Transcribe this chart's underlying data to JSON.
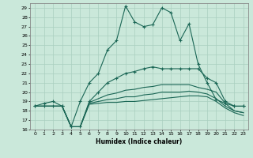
{
  "xlabel": "Humidex (Indice chaleur)",
  "xlim": [
    -0.5,
    23.5
  ],
  "ylim": [
    16,
    29.5
  ],
  "yticks": [
    16,
    17,
    18,
    19,
    20,
    21,
    22,
    23,
    24,
    25,
    26,
    27,
    28,
    29
  ],
  "xticks": [
    0,
    1,
    2,
    3,
    4,
    5,
    6,
    7,
    8,
    9,
    10,
    11,
    12,
    13,
    14,
    15,
    16,
    17,
    18,
    19,
    20,
    21,
    22,
    23
  ],
  "bg_color": "#cae8da",
  "grid_color": "#aacfbf",
  "line_color": "#1a6655",
  "line1": [
    18.5,
    18.8,
    19.0,
    18.5,
    16.3,
    19.0,
    21.0,
    22.0,
    24.5,
    25.5,
    29.2,
    27.5,
    27.0,
    27.2,
    29.0,
    28.5,
    25.5,
    27.3,
    23.0,
    21.0,
    19.2,
    18.8,
    18.5,
    18.5
  ],
  "line2": [
    18.5,
    18.5,
    18.5,
    18.5,
    16.3,
    16.3,
    19.0,
    20.0,
    21.0,
    21.5,
    22.0,
    22.2,
    22.5,
    22.7,
    22.5,
    22.5,
    22.5,
    22.5,
    22.5,
    21.5,
    21.0,
    19.0,
    18.5,
    18.5
  ],
  "line3": [
    18.5,
    18.5,
    18.5,
    18.5,
    16.3,
    16.3,
    18.9,
    19.3,
    19.7,
    19.9,
    20.2,
    20.3,
    20.5,
    20.6,
    20.8,
    20.8,
    20.8,
    20.8,
    20.5,
    20.3,
    20.0,
    18.8,
    18.0,
    17.8
  ],
  "line4": [
    18.5,
    18.5,
    18.5,
    18.5,
    16.3,
    16.3,
    18.8,
    19.0,
    19.2,
    19.3,
    19.5,
    19.5,
    19.7,
    19.8,
    20.0,
    20.0,
    20.0,
    20.1,
    20.0,
    19.8,
    19.3,
    18.5,
    18.0,
    17.8
  ],
  "line5": [
    18.5,
    18.5,
    18.5,
    18.5,
    16.3,
    16.3,
    18.7,
    18.8,
    18.9,
    18.9,
    19.0,
    19.0,
    19.1,
    19.2,
    19.3,
    19.4,
    19.5,
    19.6,
    19.6,
    19.5,
    19.0,
    18.3,
    17.8,
    17.5
  ],
  "line1_markers": [
    0,
    1,
    2,
    3,
    4,
    5,
    6,
    7,
    8,
    9,
    10,
    11,
    12,
    13,
    14,
    15,
    16,
    17,
    18,
    19,
    20,
    21,
    22,
    23
  ],
  "line2_markers": [
    0,
    1,
    2,
    3,
    4,
    5,
    6,
    7,
    8,
    9,
    10,
    11,
    12,
    13,
    14,
    15,
    16,
    17,
    18,
    19,
    20,
    21,
    22,
    23
  ]
}
